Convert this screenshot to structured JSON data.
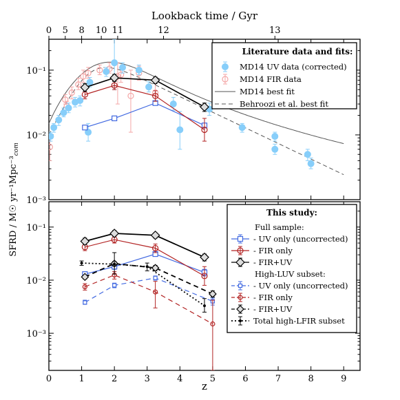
{
  "chart_data": [
    {
      "panel": "top",
      "type": "scatter",
      "title": "Lookback time / Gyr",
      "top_axis": {
        "label": "Lookback time / Gyr",
        "ticks": [
          0,
          5,
          8,
          10,
          11,
          12,
          13
        ],
        "tick_z": [
          0,
          0.5,
          1.0,
          1.6,
          2.1,
          3.5,
          6.9
        ]
      },
      "xlabel": "z",
      "ylabel": "SFRD / M☉ yr⁻¹Mpc⁻³com",
      "xlim": [
        0,
        9.5
      ],
      "ylim": [
        0.001,
        0.3
      ],
      "log_y": true,
      "x_ticks": [
        0,
        1,
        2,
        3,
        4,
        5,
        6,
        7,
        8,
        9
      ],
      "y_ticks": [
        {
          "value": 0.001,
          "label": "10⁻³"
        },
        {
          "value": 0.01,
          "label": "10⁻²"
        },
        {
          "value": 0.1,
          "label": "10⁻¹"
        }
      ],
      "legend": {
        "title": "Literature data and fits:",
        "placement": "top-right",
        "entries": [
          {
            "label": "MD14 UV data (corrected)",
            "marker": "filled-circle",
            "color": "#87cefa"
          },
          {
            "label": "MD14 FIR data",
            "marker": "open-circle",
            "color": "#f4a6a6"
          },
          {
            "label": "MD14 best fit",
            "marker": "solid-line",
            "color": "#555555"
          },
          {
            "label": "Behroozi et al. best fit",
            "marker": "dashed-line",
            "color": "#555555"
          }
        ]
      },
      "series": [
        {
          "name": "MD14 UV data (corrected)",
          "color": "#87cefa",
          "marker": "filled-circle",
          "points": [
            [
              0.05,
              0.0095,
              0.008,
              0.011
            ],
            [
              0.15,
              0.013,
              0.011,
              0.015
            ],
            [
              0.3,
              0.017,
              0.014,
              0.02
            ],
            [
              0.45,
              0.022,
              0.019,
              0.026
            ],
            [
              0.6,
              0.026,
              0.022,
              0.031
            ],
            [
              0.8,
              0.032,
              0.027,
              0.038
            ],
            [
              0.95,
              0.034,
              0.028,
              0.04
            ],
            [
              1.25,
              0.065,
              0.055,
              0.077
            ],
            [
              1.75,
              0.095,
              0.08,
              0.11
            ],
            [
              2.25,
              0.11,
              0.09,
              0.13
            ],
            [
              2.75,
              0.1,
              0.085,
              0.12
            ],
            [
              3.05,
              0.055,
              0.046,
              0.066
            ],
            [
              3.8,
              0.03,
              0.024,
              0.038
            ],
            [
              4.9,
              0.025,
              0.02,
              0.031
            ],
            [
              5.9,
              0.013,
              0.011,
              0.015
            ],
            [
              6.9,
              0.0095,
              0.008,
              0.011
            ],
            [
              7.9,
              0.005,
              0.004,
              0.006
            ],
            [
              8.0,
              0.0036,
              0.003,
              0.0044
            ],
            [
              1.2,
              0.011,
              0.008,
              0.015
            ],
            [
              4.0,
              0.012,
              0.006,
              0.023
            ],
            [
              2.0,
              0.13,
              0.05,
              0.3
            ],
            [
              6.9,
              0.006,
              0.005,
              0.0072
            ]
          ]
        },
        {
          "name": "MD14 FIR data",
          "color": "#f4a6a6",
          "marker": "open-circle",
          "points": [
            [
              0.03,
              0.0065,
              0.004,
              0.01
            ],
            [
              0.55,
              0.028,
              0.024,
              0.033
            ],
            [
              0.7,
              0.045,
              0.036,
              0.055
            ],
            [
              0.9,
              0.06,
              0.05,
              0.075
            ],
            [
              1.05,
              0.08,
              0.065,
              0.1
            ],
            [
              1.2,
              0.09,
              0.075,
              0.11
            ],
            [
              1.55,
              0.1,
              0.085,
              0.12
            ],
            [
              1.85,
              0.105,
              0.09,
              0.13
            ],
            [
              2.2,
              0.085,
              0.065,
              0.11
            ],
            [
              2.75,
              0.09,
              0.07,
              0.115
            ],
            [
              3.25,
              0.045,
              0.032,
              0.065
            ],
            [
              0.5,
              0.035,
              0.03,
              0.042
            ],
            [
              2.5,
              0.04,
              0.011,
              0.1
            ],
            [
              2.1,
              0.08,
              0.03,
              0.13
            ]
          ]
        },
        {
          "name": "This study FIR+UV (full sample)",
          "color": "#000000",
          "marker": "diamond",
          "points": [
            [
              1.1,
              0.054
            ],
            [
              2.0,
              0.076
            ],
            [
              3.25,
              0.07
            ],
            [
              4.75,
              0.027
            ]
          ],
          "yerr_hi": [
            0.062,
            0.086,
            0.078,
            0.031
          ],
          "yerr_lo": [
            0.047,
            0.067,
            0.062,
            0.023
          ]
        },
        {
          "name": "This study FIR only (full sample)",
          "color": "#b22222",
          "marker": "open-circle",
          "points": [
            [
              1.1,
              0.042
            ],
            [
              2.0,
              0.058
            ],
            [
              3.25,
              0.04
            ],
            [
              4.75,
              0.012
            ]
          ],
          "yerr_hi": [
            0.05,
            0.068,
            0.048,
            0.018
          ],
          "yerr_lo": [
            0.036,
            0.05,
            0.033,
            0.008
          ]
        },
        {
          "name": "This study UV only (full sample)",
          "color": "#4169e1",
          "marker": "open-square",
          "points": [
            [
              1.1,
              0.013
            ],
            [
              2.0,
              0.018
            ],
            [
              3.25,
              0.031
            ],
            [
              4.75,
              0.014
            ]
          ]
        }
      ],
      "lines": [
        {
          "name": "MD14 best fit",
          "style": "solid",
          "color": "#555555"
        },
        {
          "name": "Behroozi et al. best fit",
          "style": "dashed",
          "color": "#555555"
        }
      ]
    },
    {
      "panel": "bottom",
      "type": "line",
      "xlabel": "z",
      "xlim": [
        0,
        9.5
      ],
      "ylim": [
        0.0002,
        0.3
      ],
      "log_y": true,
      "x_ticks": [
        0,
        1,
        2,
        3,
        4,
        5,
        6,
        7,
        8,
        9
      ],
      "y_ticks": [
        {
          "value": 0.001,
          "label": "10⁻³"
        },
        {
          "value": 0.01,
          "label": "10⁻²"
        },
        {
          "value": 0.1,
          "label": "10⁻¹"
        }
      ],
      "legend": {
        "title": "This study:",
        "placement": "top-right",
        "sections": [
          {
            "header": "Full sample:",
            "entries": [
              {
                "label": "- UV only (uncorrected)",
                "color": "#4169e1",
                "style": "solid",
                "marker": "open-square"
              },
              {
                "label": "- FIR only",
                "color": "#b22222",
                "style": "solid",
                "marker": "open-circle"
              },
              {
                "label": "- FIR+UV",
                "color": "#000000",
                "style": "solid",
                "marker": "diamond"
              }
            ]
          },
          {
            "header": "High-LUV subset:",
            "entries": [
              {
                "label": "- UV only (uncorrected)",
                "color": "#4169e1",
                "style": "dashed",
                "marker": "open-square"
              },
              {
                "label": "- FIR only",
                "color": "#b22222",
                "style": "dashed",
                "marker": "open-circle"
              },
              {
                "label": "- FIR+UV",
                "color": "#000000",
                "style": "dashed",
                "marker": "diamond"
              }
            ]
          },
          {
            "header": "",
            "entries": [
              {
                "label": "Total high-LFIR subset",
                "color": "#000000",
                "style": "dotted",
                "marker": "dot"
              }
            ]
          }
        ]
      },
      "series": [
        {
          "name": "Full UV only (uncorrected)",
          "color": "#4169e1",
          "style": "solid",
          "marker": "open-square",
          "x": [
            1.1,
            2.0,
            3.25,
            4.75
          ],
          "y": [
            0.013,
            0.018,
            0.031,
            0.014
          ],
          "ylo": [
            0.012,
            0.016,
            0.028,
            0.012
          ],
          "yhi": [
            0.0145,
            0.02,
            0.034,
            0.016
          ]
        },
        {
          "name": "Full FIR only",
          "color": "#b22222",
          "style": "solid",
          "marker": "open-circle",
          "x": [
            1.1,
            2.0,
            3.25,
            4.75
          ],
          "y": [
            0.042,
            0.058,
            0.04,
            0.012
          ],
          "ylo": [
            0.036,
            0.05,
            0.033,
            0.008
          ],
          "yhi": [
            0.05,
            0.068,
            0.048,
            0.018
          ]
        },
        {
          "name": "Full FIR+UV",
          "color": "#000000",
          "style": "solid",
          "marker": "diamond",
          "x": [
            1.1,
            2.0,
            3.25,
            4.75
          ],
          "y": [
            0.054,
            0.076,
            0.07,
            0.027
          ],
          "ylo": [
            0.047,
            0.067,
            0.062,
            0.023
          ],
          "yhi": [
            0.062,
            0.086,
            0.078,
            0.031
          ]
        },
        {
          "name": "High-LUV UV only (uncorrected)",
          "color": "#4169e1",
          "style": "dashed",
          "marker": "open-square",
          "x": [
            1.1,
            2.0,
            3.25,
            5.0
          ],
          "y": [
            0.0038,
            0.008,
            0.011,
            0.004
          ],
          "ylo": [
            0.0035,
            0.0072,
            0.01,
            0.0034
          ],
          "yhi": [
            0.0042,
            0.0088,
            0.012,
            0.0046
          ]
        },
        {
          "name": "High-LUV FIR only",
          "color": "#b22222",
          "style": "dashed",
          "marker": "open-circle",
          "x": [
            1.1,
            2.0,
            3.25,
            5.0
          ],
          "y": [
            0.0075,
            0.0125,
            0.006,
            0.0015
          ],
          "ylo": [
            0.0065,
            0.0105,
            0.003,
            0.0002
          ],
          "yhi": [
            0.0086,
            0.0145,
            0.0095,
            0.0042
          ]
        },
        {
          "name": "High-LUV FIR+UV",
          "color": "#000000",
          "style": "dashed",
          "marker": "diamond",
          "x": [
            1.1,
            2.0,
            3.25,
            5.0
          ],
          "y": [
            0.0115,
            0.0205,
            0.017,
            0.0055
          ],
          "ylo": [
            0.0105,
            0.0185,
            0.015,
            0.0048
          ],
          "yhi": [
            0.0125,
            0.0225,
            0.019,
            0.0063
          ]
        },
        {
          "name": "Total high-LFIR subset",
          "color": "#000000",
          "style": "dotted",
          "marker": "dot",
          "x": [
            1.0,
            2.0,
            3.0,
            4.75
          ],
          "y": [
            0.021,
            0.02,
            0.018,
            0.0033
          ],
          "ylo": [
            0.019,
            0.013,
            0.015,
            0.0025
          ],
          "yhi": [
            0.023,
            0.033,
            0.021,
            0.0045
          ]
        }
      ]
    }
  ],
  "labels": {
    "top_axis_title": "Lookback time / Gyr",
    "x_axis_title": "z",
    "y_axis_title": "SFRD / M☉ yr⁻¹Mpc⁻³",
    "y_axis_sub": "com"
  }
}
